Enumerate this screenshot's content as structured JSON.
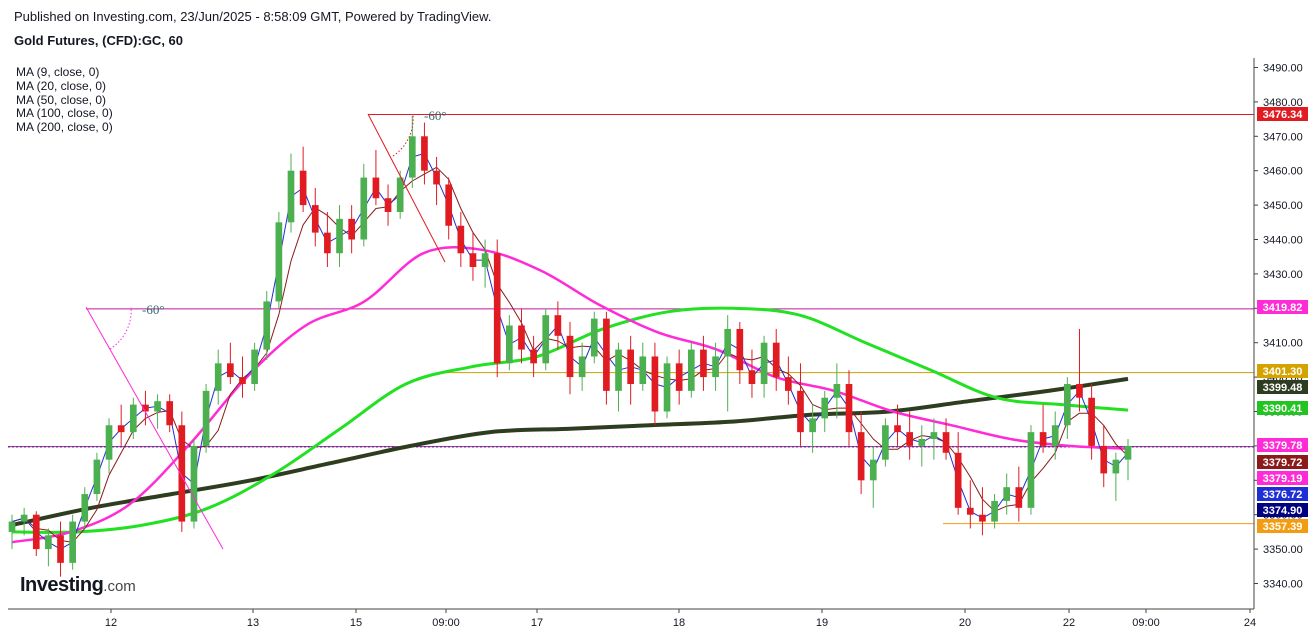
{
  "header": {
    "published": "Published on Investing.com, 23/Jun/2025 - 8:58:09 GMT, Powered by TradingView.",
    "title": "Gold Futures, (CFD):GC, 60"
  },
  "legend": [
    "MA (9, close, 0)",
    "MA (20, close, 0)",
    "MA (50, close, 0)",
    "MA (100, close, 0)",
    "MA (200, close, 0)"
  ],
  "logo": {
    "brand": "Investing",
    "suffix": ".com"
  },
  "colors": {
    "up": "#4caf50",
    "down": "#e01b22",
    "ma9": "#1f2fd6",
    "ma20": "#8b1a1a",
    "ma50": "#ff2bd6",
    "ma100": "#22e022",
    "ma200": "#2e3d1f"
  },
  "chart_data": {
    "type": "candlestick",
    "symbol": "Gold Futures (CFD):GC",
    "interval": "60",
    "ylim": [
      3335,
      3495
    ],
    "y_ticks": [
      3340,
      3350,
      3360,
      3370,
      3380,
      3390,
      3400,
      3410,
      3420,
      3430,
      3440,
      3450,
      3460,
      3470,
      3480,
      3490
    ],
    "x_labels": [
      "12",
      "13",
      "15",
      "09:00",
      "17",
      "18",
      "19",
      "20",
      "22",
      "09:00",
      "24"
    ],
    "candles": [
      [
        3355,
        3360,
        3350,
        3358
      ],
      [
        3358,
        3362,
        3354,
        3360
      ],
      [
        3360,
        3361,
        3348,
        3350
      ],
      [
        3350,
        3356,
        3345,
        3354
      ],
      [
        3354,
        3358,
        3342,
        3346
      ],
      [
        3346,
        3360,
        3344,
        3358
      ],
      [
        3358,
        3368,
        3356,
        3366
      ],
      [
        3366,
        3378,
        3364,
        3376
      ],
      [
        3376,
        3388,
        3372,
        3386
      ],
      [
        3386,
        3392,
        3380,
        3384
      ],
      [
        3384,
        3394,
        3382,
        3392
      ],
      [
        3392,
        3396,
        3386,
        3390
      ],
      [
        3390,
        3395,
        3385,
        3393
      ],
      [
        3393,
        3395,
        3384,
        3386
      ],
      [
        3386,
        3390,
        3355,
        3358
      ],
      [
        3358,
        3382,
        3356,
        3380
      ],
      [
        3380,
        3398,
        3378,
        3396
      ],
      [
        3396,
        3408,
        3392,
        3404
      ],
      [
        3404,
        3410,
        3398,
        3400
      ],
      [
        3400,
        3406,
        3394,
        3398
      ],
      [
        3398,
        3410,
        3396,
        3408
      ],
      [
        3408,
        3425,
        3405,
        3422
      ],
      [
        3422,
        3448,
        3420,
        3445
      ],
      [
        3445,
        3465,
        3442,
        3460
      ],
      [
        3460,
        3467,
        3448,
        3450
      ],
      [
        3450,
        3455,
        3438,
        3442
      ],
      [
        3442,
        3448,
        3432,
        3436
      ],
      [
        3436,
        3450,
        3432,
        3446
      ],
      [
        3446,
        3450,
        3436,
        3440
      ],
      [
        3440,
        3462,
        3438,
        3458
      ],
      [
        3458,
        3466,
        3450,
        3452
      ],
      [
        3452,
        3456,
        3444,
        3448
      ],
      [
        3448,
        3460,
        3446,
        3458
      ],
      [
        3458,
        3476,
        3455,
        3470
      ],
      [
        3470,
        3474,
        3456,
        3460
      ],
      [
        3460,
        3464,
        3450,
        3456
      ],
      [
        3456,
        3458,
        3440,
        3444
      ],
      [
        3444,
        3448,
        3432,
        3436
      ],
      [
        3436,
        3442,
        3428,
        3432
      ],
      [
        3432,
        3440,
        3426,
        3436
      ],
      [
        3436,
        3440,
        3400,
        3404
      ],
      [
        3404,
        3418,
        3402,
        3415
      ],
      [
        3415,
        3420,
        3404,
        3408
      ],
      [
        3408,
        3412,
        3400,
        3404
      ],
      [
        3404,
        3420,
        3402,
        3418
      ],
      [
        3418,
        3422,
        3408,
        3412
      ],
      [
        3412,
        3416,
        3395,
        3400
      ],
      [
        3400,
        3410,
        3396,
        3406
      ],
      [
        3406,
        3419,
        3404,
        3417
      ],
      [
        3417,
        3419,
        3392,
        3396
      ],
      [
        3396,
        3410,
        3390,
        3408
      ],
      [
        3408,
        3412,
        3392,
        3398
      ],
      [
        3398,
        3410,
        3396,
        3406
      ],
      [
        3406,
        3410,
        3386,
        3390
      ],
      [
        3390,
        3406,
        3388,
        3404
      ],
      [
        3404,
        3408,
        3392,
        3396
      ],
      [
        3396,
        3410,
        3394,
        3408
      ],
      [
        3408,
        3412,
        3396,
        3400
      ],
      [
        3400,
        3410,
        3396,
        3406
      ],
      [
        3406,
        3418,
        3390,
        3414
      ],
      [
        3414,
        3416,
        3398,
        3402
      ],
      [
        3402,
        3408,
        3394,
        3398
      ],
      [
        3398,
        3412,
        3394,
        3410
      ],
      [
        3410,
        3414,
        3396,
        3400
      ],
      [
        3400,
        3406,
        3392,
        3396
      ],
      [
        3396,
        3404,
        3380,
        3384
      ],
      [
        3384,
        3392,
        3378,
        3388
      ],
      [
        3388,
        3396,
        3384,
        3394
      ],
      [
        3394,
        3404,
        3388,
        3398
      ],
      [
        3398,
        3402,
        3380,
        3384
      ],
      [
        3384,
        3390,
        3366,
        3370
      ],
      [
        3370,
        3380,
        3362,
        3376
      ],
      [
        3376,
        3388,
        3374,
        3386
      ],
      [
        3386,
        3392,
        3380,
        3384
      ],
      [
        3384,
        3390,
        3376,
        3380
      ],
      [
        3380,
        3386,
        3374,
        3382
      ],
      [
        3382,
        3388,
        3376,
        3384
      ],
      [
        3384,
        3388,
        3376,
        3378
      ],
      [
        3378,
        3384,
        3360,
        3362
      ],
      [
        3362,
        3370,
        3356,
        3360
      ],
      [
        3360,
        3368,
        3354,
        3358
      ],
      [
        3358,
        3366,
        3356,
        3364
      ],
      [
        3364,
        3372,
        3360,
        3368
      ],
      [
        3368,
        3374,
        3358,
        3362
      ],
      [
        3362,
        3386,
        3360,
        3384
      ],
      [
        3384,
        3392,
        3378,
        3380
      ],
      [
        3380,
        3390,
        3376,
        3386
      ],
      [
        3386,
        3400,
        3382,
        3398
      ],
      [
        3398,
        3414,
        3390,
        3394
      ],
      [
        3394,
        3398,
        3376,
        3380
      ],
      [
        3380,
        3386,
        3368,
        3372
      ],
      [
        3372,
        3378,
        3364,
        3376
      ],
      [
        3376,
        3382,
        3370,
        3380
      ]
    ],
    "moving_averages": [
      {
        "name": "MA (9, close, 0)",
        "period": 9
      },
      {
        "name": "MA (20, close, 0)",
        "period": 20
      },
      {
        "name": "MA (50, close, 0)",
        "period": 50
      },
      {
        "name": "MA (100, close, 0)",
        "period": 100
      },
      {
        "name": "MA (200, close, 0)",
        "period": 200
      }
    ],
    "ma_curves": {
      "ma50": [
        3352,
        3355,
        3363,
        3380,
        3400,
        3415,
        3422,
        3436,
        3437,
        3431,
        3421,
        3413,
        3408,
        3400,
        3396,
        3390,
        3386,
        3382,
        3380,
        3379.19
      ],
      "ma100": [
        3355,
        3355,
        3357,
        3362,
        3372,
        3385,
        3398,
        3403,
        3406,
        3414,
        3419,
        3420,
        3418,
        3410,
        3402,
        3394,
        3392,
        3390.41
      ],
      "ma200": [
        3357,
        3362,
        3366,
        3370,
        3375,
        3380,
        3384,
        3385,
        3386,
        3387,
        3389,
        3390,
        3393,
        3396,
        3399.48
      ]
    },
    "horizontal_lines": [
      {
        "value": 3476.34,
        "color": "#e01b22"
      },
      {
        "value": 3419.82,
        "color": "#c2189c"
      },
      {
        "value": 3401.3,
        "color": "#c8a100"
      },
      {
        "value": 3379.78,
        "color": "#c2189c"
      },
      {
        "value": 3357.39,
        "color": "#f39c12"
      },
      {
        "value": 3379.72,
        "color": "#1a237e",
        "dashed": true
      }
    ],
    "price_badges": [
      {
        "value": "3476.34",
        "price": 3476.34,
        "bg": "#e01b22"
      },
      {
        "value": "3419.82",
        "price": 3419.82,
        "bg": "#ff2bd6"
      },
      {
        "value": "3401.30",
        "price": 3401.3,
        "bg": "#d4a300"
      },
      {
        "value": "3399.48",
        "price": 3399.48,
        "bg": "#2e3d1f"
      },
      {
        "value": "3390.41",
        "price": 3390.41,
        "bg": "#22c422"
      },
      {
        "value": "3379.78",
        "price": 3379.78,
        "bg": "#ff2bd6"
      },
      {
        "value": "3379.72",
        "price": 3379.72,
        "bg": "#8b1a1a"
      },
      {
        "value": "3379.19",
        "price": 3379.19,
        "bg": "#ff2bd6"
      },
      {
        "value": "3376.72",
        "price": 3376.72,
        "bg": "#1f2fd6"
      },
      {
        "value": "3374.90",
        "price": 3374.9,
        "bg": "#000080"
      },
      {
        "value": "3357.39",
        "price": 3357.39,
        "bg": "#f39c12"
      }
    ],
    "annotations": [
      {
        "label": "-60°",
        "color": "#e01b22"
      },
      {
        "label": "-60°",
        "color": "#ff2bd6"
      }
    ]
  }
}
